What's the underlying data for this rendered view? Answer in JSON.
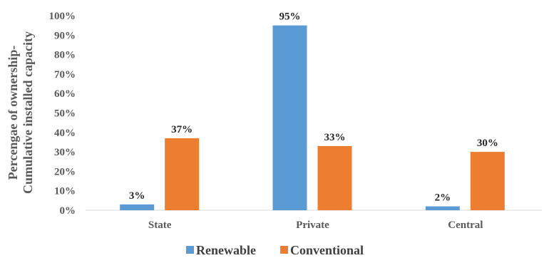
{
  "chart_data": {
    "type": "bar",
    "categories": [
      "State",
      "Private",
      "Central"
    ],
    "series": [
      {
        "name": "Renewable",
        "values": [
          3,
          95,
          2
        ],
        "color": "#5B9BD5"
      },
      {
        "name": "Conventional",
        "values": [
          37,
          33,
          30
        ],
        "color": "#ED7D31"
      }
    ],
    "data_labels": [
      [
        "3%",
        "95%",
        "2%"
      ],
      [
        "37%",
        "33%",
        "30%"
      ]
    ],
    "yticks": [
      "0%",
      "10%",
      "20%",
      "30%",
      "40%",
      "50%",
      "60%",
      "70%",
      "80%",
      "90%",
      "100%"
    ],
    "ylim": [
      0,
      100
    ],
    "ylabel_lines": [
      "Percengae of ownership-",
      "Cumulative installed capacity"
    ],
    "xlabel": "",
    "title": "",
    "grid": false,
    "legend_position": "bottom"
  }
}
